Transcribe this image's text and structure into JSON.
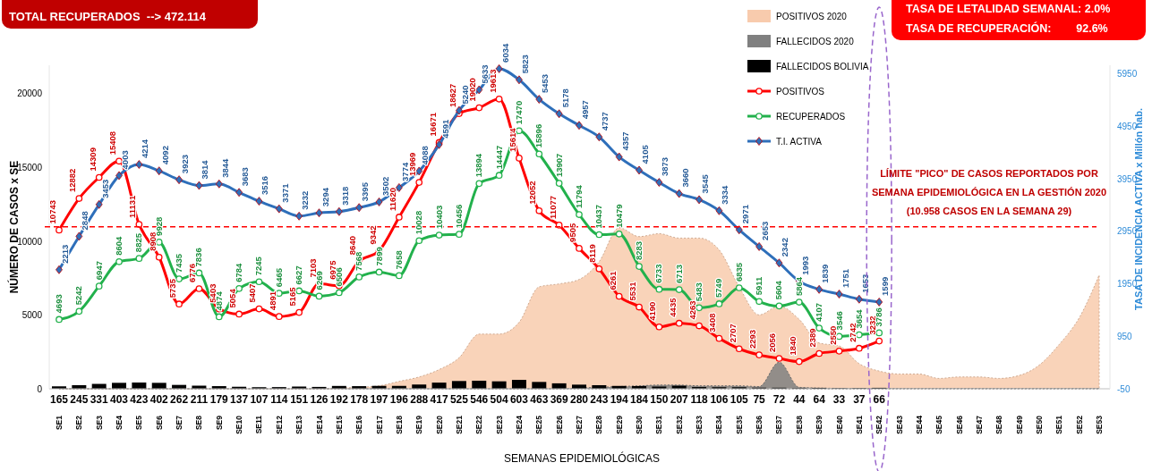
{
  "chart_data": {
    "type": "line",
    "xlabel": "SEMANAS EPIDEMIOLÓGICAS",
    "ylabel": "NÚMERO DE CASOS x SE",
    "y2label": "TASA DE INCIDENCIA ACTIVA x Millón hab.",
    "annotations": [
      "TOTAL RECUPERADOS  --> 472.114",
      "TASA DE LETALIDAD SEMANAL: 2.0%",
      "TASA DE RECUPERACIÓN:        92.6%",
      "LÍMITE \"PICO\" DE CASOS REPORTADOS POR",
      "SEMANA EPIDEMIOLÓGICA EN LA GESTIÓN 2020",
      "(10.958 CASOS EN LA SEMANA 29)"
    ],
    "categories": [
      "SE1",
      "SE2",
      "SE3",
      "SE4",
      "SE5",
      "SE6",
      "SE7",
      "SE8",
      "SE9",
      "SE10",
      "SE11",
      "SE12",
      "SE13",
      "SE14",
      "SE15",
      "SE16",
      "SE17",
      "SE18",
      "SE19",
      "SE20",
      "SE21",
      "SE22",
      "SE23",
      "SE24",
      "SE25",
      "SE26",
      "SE27",
      "SE28",
      "SE29",
      "SE30",
      "SE31",
      "SE32",
      "SE33",
      "SE34",
      "SE35",
      "SE36",
      "SE37",
      "SE38",
      "SE39",
      "SE40",
      "SE41",
      "SE42",
      "SE43",
      "SE44",
      "SE45",
      "SE46",
      "SE47",
      "SE48",
      "SE49",
      "SE50",
      "SE51",
      "SE52",
      "SE53"
    ],
    "series": [
      {
        "name": "POSITIVOS 2020",
        "type": "area",
        "color": "#f8cbad",
        "values": [
          0,
          0,
          0,
          0,
          0,
          0,
          0,
          0,
          0,
          0,
          0,
          0,
          0,
          0,
          50,
          100,
          200,
          500,
          800,
          1300,
          2100,
          3700,
          3700,
          4500,
          6900,
          7100,
          7400,
          8600,
          10900,
          10300,
          10500,
          10200,
          10200,
          9400,
          6900,
          5000,
          5600,
          4700,
          3100,
          2900,
          1700,
          1200,
          1000,
          1000,
          700,
          800,
          800,
          700,
          900,
          1600,
          3000,
          4800,
          7700
        ]
      },
      {
        "name": "FALLECIDOS 2020",
        "type": "area",
        "color": "#808080",
        "values": [
          0,
          0,
          0,
          0,
          0,
          0,
          0,
          0,
          0,
          0,
          0,
          0,
          0,
          0,
          0,
          0,
          0,
          0,
          0,
          0,
          0,
          0,
          0,
          0,
          0,
          0,
          50,
          100,
          150,
          200,
          250,
          250,
          200,
          200,
          200,
          150,
          1800,
          100,
          50,
          30,
          30,
          30,
          30,
          30,
          30,
          30,
          30,
          30,
          30,
          30,
          30,
          30,
          30
        ]
      },
      {
        "name": "FALLECIDOS BOLIVIA",
        "type": "bar",
        "color": "#000000",
        "data_labels": true,
        "values": [
          165,
          245,
          331,
          403,
          423,
          402,
          262,
          211,
          179,
          137,
          107,
          114,
          151,
          126,
          192,
          178,
          197,
          196,
          288,
          417,
          525,
          546,
          504,
          603,
          463,
          369,
          280,
          243,
          194,
          184,
          150,
          207,
          118,
          106,
          105,
          75,
          72,
          44,
          64,
          33,
          37,
          66,
          null,
          null,
          null,
          null,
          null,
          null,
          null,
          null,
          null,
          null,
          null
        ]
      },
      {
        "name": "POSITIVOS",
        "color": "#ff0000",
        "marker": "circle",
        "data_labels": true,
        "values": [
          10743,
          12882,
          14309,
          15408,
          11131,
          8908,
          5735,
          6776,
          5403,
          5054,
          5407,
          4891,
          5165,
          7103,
          6975,
          8640,
          9342,
          11620,
          13969,
          16671,
          18627,
          19020,
          19613,
          15614,
          12052,
          11077,
          9505,
          8119,
          6261,
          5531,
          4190,
          4435,
          4263,
          3408,
          2707,
          2293,
          2056,
          1840,
          2389,
          2550,
          2742,
          3232,
          null,
          null,
          null,
          null,
          null,
          null,
          null,
          null,
          null,
          null,
          null
        ]
      },
      {
        "name": "RECUPERADOS",
        "color": "#22b14c",
        "marker": "circle",
        "data_labels": true,
        "values": [
          4693,
          5242,
          6947,
          8604,
          8825,
          9928,
          7435,
          7836,
          4874,
          6784,
          7245,
          6465,
          6627,
          6269,
          6506,
          7568,
          7899,
          7658,
          10028,
          10403,
          10456,
          13894,
          14447,
          17470,
          15896,
          13907,
          11794,
          10437,
          10479,
          8283,
          6733,
          6713,
          5483,
          5749,
          6835,
          5911,
          5604,
          5864,
          4107,
          3546,
          3654,
          3786,
          null,
          null,
          null,
          null,
          null,
          null,
          null,
          null,
          null,
          null,
          null
        ]
      },
      {
        "name": "T.I. ACTIVA",
        "axis": "y2",
        "color": "#2e6fba",
        "marker": "diamond",
        "data_labels": true,
        "values": [
          2213,
          2848,
          3453,
          4003,
          4214,
          4092,
          3923,
          3814,
          3844,
          3683,
          3516,
          3371,
          3232,
          3294,
          3318,
          3395,
          3502,
          3774,
          4088,
          4591,
          5240,
          5633,
          6034,
          5823,
          5453,
          5178,
          4957,
          4737,
          4357,
          4105,
          3873,
          3660,
          3545,
          3334,
          2971,
          2653,
          2342,
          1993,
          1839,
          1751,
          1653,
          1599,
          null,
          null,
          null,
          null,
          null,
          null,
          null,
          null,
          null,
          null,
          null
        ]
      }
    ],
    "ylim": [
      0,
      21900
    ],
    "yticks": [
      0,
      5000,
      10000,
      15000,
      20000
    ],
    "y2lim": [
      -50,
      6100
    ],
    "y2ticks": [
      -50,
      950,
      1950,
      2950,
      3950,
      4950,
      5950
    ],
    "ref_lines": [
      {
        "axis": "y",
        "value": 10958,
        "color": "#ff0000",
        "line_style": "dashed"
      }
    ],
    "legend": "top",
    "grid": false
  }
}
